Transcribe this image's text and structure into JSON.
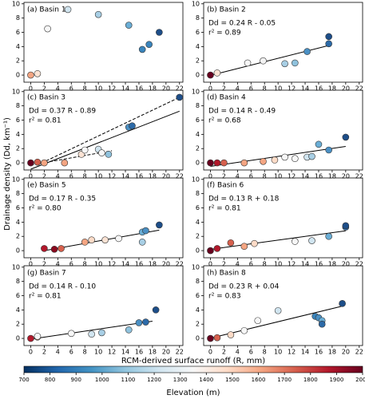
{
  "chart_data": [
    {
      "type": "scatter",
      "title": "(a) Basin 1",
      "x": [
        0,
        1,
        2.5,
        5.5,
        10,
        14.5,
        16.5,
        17.5,
        19
      ],
      "values": [
        0,
        0.2,
        6.5,
        9.2,
        8.5,
        7,
        3.6,
        4.3,
        6
      ],
      "colors": [
        "#f4a582",
        "#fbe3d4",
        "#f7f7f7",
        "#d1e5f0",
        "#a8cfe5",
        "#6aaed6",
        "#3a85bd",
        "#3a85bd",
        "#1d4e89"
      ],
      "xlim": [
        -1,
        22.5
      ],
      "ylim": [
        -1,
        10.2
      ],
      "xticks": [
        0,
        2,
        4,
        6,
        8,
        10,
        12,
        14,
        16,
        18,
        20,
        22
      ],
      "yticks": [
        0,
        2,
        4,
        6,
        8,
        10
      ]
    },
    {
      "type": "scatter",
      "title": "(b) Basin 2",
      "equation": "Dd = 0.24 R - 0.05",
      "r2": "r² = 0.89",
      "x": [
        0,
        1,
        5.5,
        7.8,
        11,
        12.5,
        14.3,
        17.5,
        17.5
      ],
      "values": [
        0,
        0.3,
        1.7,
        2,
        1.6,
        1.7,
        3.3,
        4.4,
        5.4
      ],
      "colors": [
        "#67001f",
        "#fbe3d4",
        "#f7f7f7",
        "#f2f2f2",
        "#a8cfe5",
        "#8fc2dd",
        "#4a90c4",
        "#2c6aa8",
        "#1d4e89"
      ],
      "fits": [
        {
          "x": [
            0,
            17.5
          ],
          "values": [
            -0.05,
            4.15
          ],
          "dashed": false
        }
      ],
      "xlim": [
        -1,
        22.5
      ],
      "ylim": [
        -1,
        10.2
      ],
      "xticks": [
        0,
        2,
        4,
        6,
        8,
        10,
        12,
        14,
        16,
        18,
        20,
        22
      ],
      "yticks": [
        0,
        2,
        4,
        6,
        8,
        10
      ]
    },
    {
      "type": "scatter",
      "title": "(c) Basin 3",
      "equation": "Dd = 0.37 R - 0.89",
      "r2": "r² = 0.81",
      "x": [
        0,
        1,
        2,
        5,
        7.5,
        8,
        10,
        10.5,
        11.5,
        14.5,
        15,
        22
      ],
      "values": [
        0,
        0.1,
        0,
        0,
        1.2,
        1.8,
        1.9,
        1.4,
        1.2,
        5,
        5.2,
        9.2
      ],
      "colors": [
        "#67001f",
        "#d6604d",
        "#f4a582",
        "#f4a582",
        "#fbe3d4",
        "#f7f7f7",
        "#d1e5f0",
        "#f7f7f7",
        "#8fc2dd",
        "#4a90c4",
        "#2c6aa8",
        "#1d4e89"
      ],
      "fits": [
        {
          "x": [
            0,
            22
          ],
          "values": [
            -0.89,
            7.25
          ],
          "dashed": false
        },
        {
          "x": [
            1,
            22
          ],
          "values": [
            -0.3,
            9.2
          ],
          "dashed": true
        },
        {
          "x": [
            0,
            12
          ],
          "values": [
            -0.3,
            1.7
          ],
          "dashed": true
        }
      ],
      "xlim": [
        -1,
        22.5
      ],
      "ylim": [
        -1,
        10.2
      ],
      "xticks": [
        0,
        2,
        4,
        6,
        8,
        10,
        12,
        14,
        16,
        18,
        20,
        22
      ],
      "yticks": [
        0,
        2,
        4,
        6,
        8,
        10
      ]
    },
    {
      "type": "scatter",
      "title": "(d) Basin 4",
      "equation": "Dd = 0.14 R - 0.49",
      "r2": "r² = 0.68",
      "x": [
        0,
        1,
        2,
        5,
        7.8,
        9.5,
        11,
        12.5,
        14.3,
        15,
        16,
        17.5,
        20
      ],
      "values": [
        0,
        0,
        0,
        0,
        0.2,
        0.4,
        0.8,
        0.6,
        0.8,
        0.9,
        2.6,
        1.8,
        3.6
      ],
      "colors": [
        "#67001f",
        "#b2182b",
        "#d6604d",
        "#f4a582",
        "#f4a582",
        "#fddbc7",
        "#f7f7f7",
        "#f7f7f7",
        "#d1e5f0",
        "#a8cfe5",
        "#6aaed6",
        "#4a90c4",
        "#1d4e89"
      ],
      "fits": [
        {
          "x": [
            0,
            20
          ],
          "values": [
            -0.49,
            2.31
          ],
          "dashed": false
        }
      ],
      "xlim": [
        -1,
        22.5
      ],
      "ylim": [
        -1,
        10.2
      ],
      "xticks": [
        0,
        2,
        4,
        6,
        8,
        10,
        12,
        14,
        16,
        18,
        20,
        22
      ],
      "yticks": [
        0,
        2,
        4,
        6,
        8,
        10
      ]
    },
    {
      "type": "scatter",
      "title": "(e) Basin 5",
      "equation": "Dd = 0.17 R - 0.35",
      "r2": "r² = 0.80",
      "x": [
        2,
        3.5,
        4.5,
        8,
        9,
        11,
        13,
        16.5,
        16.5,
        17,
        19
      ],
      "values": [
        0.3,
        0.2,
        0.3,
        1.2,
        1.5,
        1.5,
        1.7,
        1.2,
        2.6,
        2.8,
        3.6
      ],
      "colors": [
        "#b2182b",
        "#8b0a1f",
        "#d6604d",
        "#f4a582",
        "#fddbc7",
        "#fbe3d4",
        "#f7f7f7",
        "#a8cfe5",
        "#6aaed6",
        "#4a90c4",
        "#1d4e89"
      ],
      "fits": [
        {
          "x": [
            2,
            19
          ],
          "values": [
            -0.01,
            2.88
          ],
          "dashed": false
        }
      ],
      "xlim": [
        -1,
        22.5
      ],
      "ylim": [
        -1,
        10.2
      ],
      "xticks": [
        0,
        2,
        4,
        6,
        8,
        10,
        12,
        14,
        16,
        18,
        20,
        22
      ],
      "yticks": [
        0,
        2,
        4,
        6,
        8,
        10
      ]
    },
    {
      "type": "scatter",
      "title": "(f) Basin 6",
      "equation": "Dd = 0.13 R + 0.18",
      "r2": "r² = 0.81",
      "x": [
        0,
        1,
        3,
        5,
        6.5,
        12.5,
        15,
        17.5,
        20,
        20
      ],
      "values": [
        0,
        0.3,
        1.1,
        0.6,
        1,
        1.3,
        1.4,
        2,
        3.3,
        3.5
      ],
      "colors": [
        "#67001f",
        "#b2182b",
        "#d6604d",
        "#f4a582",
        "#fddbc7",
        "#f7f7f7",
        "#d1e5f0",
        "#6aaed6",
        "#2c6aa8",
        "#1d4e89"
      ],
      "fits": [
        {
          "x": [
            0,
            20
          ],
          "values": [
            0.18,
            2.78
          ],
          "dashed": false
        }
      ],
      "xlim": [
        -1,
        22.5
      ],
      "ylim": [
        -1,
        10.2
      ],
      "xticks": [
        0,
        2,
        4,
        6,
        8,
        10,
        12,
        14,
        16,
        18,
        20,
        22
      ],
      "yticks": [
        0,
        2,
        4,
        6,
        8,
        10
      ]
    },
    {
      "type": "scatter",
      "title": "(g) Basin 7",
      "equation": "Dd = 0.14 R - 0.10",
      "r2": "r² = 0.81",
      "x": [
        0,
        1,
        1,
        6,
        9,
        10.5,
        14.5,
        16,
        17,
        18.5
      ],
      "values": [
        0,
        0.2,
        0.3,
        0.7,
        0.6,
        0.8,
        1.2,
        2.2,
        2.3,
        4
      ],
      "colors": [
        "#b2182b",
        "#f4a582",
        "#f7f7f7",
        "#f7f7f7",
        "#d1e5f0",
        "#a8cfe5",
        "#8fc2dd",
        "#4a90c4",
        "#2c6aa8",
        "#1d4e89"
      ],
      "fits": [
        {
          "x": [
            0,
            18
          ],
          "values": [
            -0.1,
            2.42
          ],
          "dashed": false
        }
      ],
      "xlim": [
        -1,
        22.5
      ],
      "ylim": [
        -1,
        10.2
      ],
      "xticks": [
        0,
        2,
        4,
        6,
        8,
        10,
        12,
        14,
        16,
        18,
        20,
        22
      ],
      "yticks": [
        0,
        2,
        4,
        6,
        8,
        10
      ]
    },
    {
      "type": "scatter",
      "title": "(h) Basin 8",
      "equation": "Dd = 0.23 R + 0.04",
      "r2": "r² = 0.83",
      "x": [
        0,
        1,
        3,
        5,
        7,
        10,
        15.5,
        16,
        16.5,
        16.5,
        19.5
      ],
      "values": [
        0,
        0.1,
        0.5,
        1.1,
        2.5,
        3.9,
        3.1,
        2.9,
        2.5,
        2,
        4.9
      ],
      "colors": [
        "#67001f",
        "#d6604d",
        "#fddbc7",
        "#f7f7f7",
        "#f7f7f7",
        "#d1e5f0",
        "#3a85bd",
        "#4a90c4",
        "#6aaed6",
        "#2c6aa8",
        "#1d4e89"
      ],
      "fits": [
        {
          "x": [
            0,
            19.5
          ],
          "values": [
            0.04,
            4.53
          ],
          "dashed": false
        }
      ],
      "xlim": [
        -1,
        22.5
      ],
      "ylim": [
        -1,
        10.2
      ],
      "xticks": [
        0,
        2,
        4,
        6,
        8,
        10,
        12,
        14,
        16,
        18,
        20,
        22
      ],
      "yticks": [
        0,
        2,
        4,
        6,
        8,
        10
      ]
    }
  ],
  "axis_labels": {
    "x": "RCM-derived surface runoff (R, mm)",
    "y": "Drainage density (Dd, km⁻¹)"
  },
  "colorbar": {
    "label": "Elevation (m)",
    "lim": [
      700,
      2000
    ],
    "ticks": [
      700,
      800,
      900,
      1000,
      1100,
      1200,
      1300,
      1400,
      1500,
      1600,
      1700,
      1800,
      1900,
      2000
    ],
    "colors": [
      "#053061",
      "#2166ac",
      "#4393c3",
      "#92c5de",
      "#d1e5f0",
      "#f7f7f7",
      "#fddbc7",
      "#f4a582",
      "#d6604d",
      "#b2182b",
      "#67001f"
    ]
  }
}
